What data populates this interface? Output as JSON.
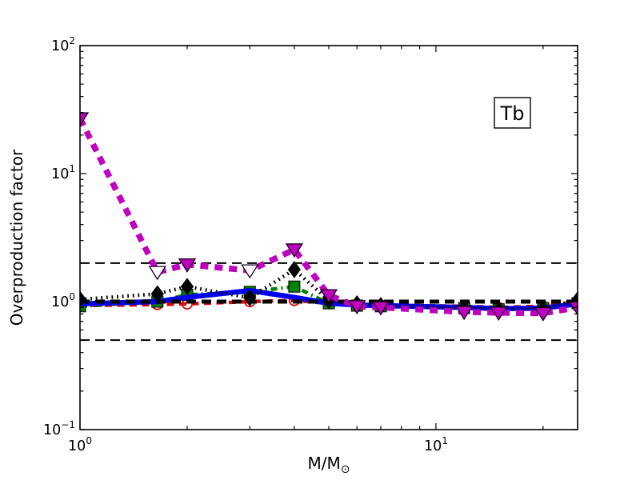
{
  "figure_title": "",
  "annotation": {
    "label": "Tb"
  },
  "chart_data": {
    "type": "line",
    "title": "",
    "xlabel": "M/M⊙",
    "xlabel_main": "M/M",
    "xlabel_sub": "⊙",
    "ylabel": "Overproduction factor",
    "xscale": "log",
    "yscale": "log",
    "xlim": [
      1,
      25
    ],
    "ylim": [
      0.1,
      100
    ],
    "grid": false,
    "legend_position": "none",
    "x_ticks": [
      {
        "value": 1,
        "base": "10",
        "exp": "0"
      },
      {
        "value": 10,
        "base": "10",
        "exp": "1"
      }
    ],
    "y_ticks": [
      {
        "value": 0.1,
        "base": "10",
        "exp": "−1"
      },
      {
        "value": 1,
        "base": "10",
        "exp": "0"
      },
      {
        "value": 10,
        "base": "10",
        "exp": "1"
      },
      {
        "value": 100,
        "base": "10",
        "exp": "2"
      }
    ],
    "reference_lines": [
      {
        "y": 2,
        "color": "#000000",
        "linestyle": "dashed",
        "linewidth": 2
      },
      {
        "y": 1,
        "color": "#000000",
        "linestyle": "dashed",
        "linewidth": 5
      },
      {
        "y": 0.5,
        "color": "#000000",
        "linestyle": "dashed",
        "linewidth": 2
      }
    ],
    "x": [
      1,
      1.65,
      2,
      3,
      4,
      5,
      6,
      7,
      12,
      15,
      20,
      25
    ],
    "series": [
      {
        "name": "red-dashed-open-circles",
        "color": "#e60000",
        "linestyle": "dashed",
        "linewidth": 4.5,
        "marker": "circle-open",
        "values": [
          0.93,
          0.95,
          0.96,
          1.0,
          1.02,
          0.97,
          0.95,
          0.94,
          0.92,
          0.9,
          0.92,
          1.0
        ]
      },
      {
        "name": "green-dashdot-squares",
        "color": "#008000",
        "linestyle": "dashdot",
        "linewidth": 4.5,
        "marker": "square",
        "values": [
          0.92,
          1.0,
          1.13,
          1.19,
          1.31,
          0.97,
          0.93,
          0.92,
          0.89,
          0.87,
          0.89,
          0.97
        ]
      },
      {
        "name": "blue-solid-thick",
        "color": "#0000ee",
        "linestyle": "solid",
        "linewidth": 6.5,
        "marker": "none",
        "values": [
          0.96,
          1.0,
          1.08,
          1.22,
          1.08,
          0.97,
          0.94,
          0.93,
          0.9,
          0.88,
          0.89,
          0.96
        ]
      },
      {
        "name": "black-dotted-diamonds",
        "color": "#000000",
        "linestyle": "dotted",
        "linewidth": 4.5,
        "marker": "diamond",
        "values": [
          1.04,
          1.15,
          1.31,
          1.07,
          1.78,
          1.02,
          0.96,
          0.93,
          0.89,
          0.87,
          0.88,
          1.03
        ]
      },
      {
        "name": "magenta-dashed-triangles",
        "color": "#bf00bf",
        "linestyle": "dashed",
        "linewidth": 7.5,
        "marker": "triangle-down",
        "marker_open_at": [
          1.65,
          3
        ],
        "values": [
          27,
          1.7,
          1.95,
          1.75,
          2.55,
          1.12,
          0.92,
          0.9,
          0.83,
          0.82,
          0.81,
          0.9
        ]
      }
    ]
  }
}
